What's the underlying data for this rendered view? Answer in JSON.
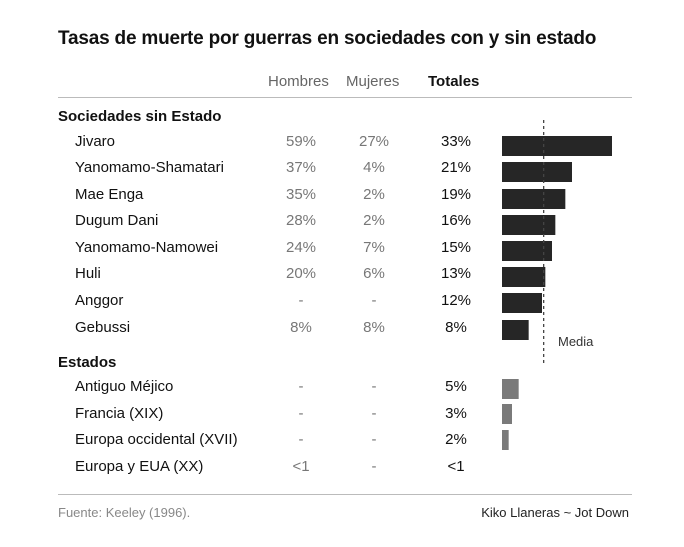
{
  "title": "Tasas de muerte por guerras en sociedades con y sin estado",
  "columns": {
    "men": "Hombres",
    "women": "Mujeres",
    "total": "Totales"
  },
  "sections": [
    {
      "name": "Sociedades sin Estado"
    },
    {
      "name": "Estados"
    }
  ],
  "rows": [
    {
      "label": "Jivaro",
      "men": "59%",
      "women": "27%",
      "total": "33%"
    },
    {
      "label": "Yanomamo-Shamatari",
      "men": "37%",
      "women": "4%",
      "total": "21%"
    },
    {
      "label": "Mae Enga",
      "men": "35%",
      "women": "2%",
      "total": "19%"
    },
    {
      "label": "Dugum Dani",
      "men": "28%",
      "women": "2%",
      "total": "16%"
    },
    {
      "label": "Yanomamo-Namowei",
      "men": "24%",
      "women": "7%",
      "total": "15%"
    },
    {
      "label": "Huli",
      "men": "20%",
      "women": "6%",
      "total": "13%"
    },
    {
      "label": "Anggor",
      "men": "-",
      "women": "-",
      "total": "12%"
    },
    {
      "label": "Gebussi",
      "men": "8%",
      "women": "8%",
      "total": "8%"
    },
    {
      "label": "Antiguo Méjico",
      "men": "-",
      "women": "-",
      "total": "5%"
    },
    {
      "label": "Francia (XIX)",
      "men": "-",
      "women": "-",
      "total": "3%"
    },
    {
      "label": "Europa occidental (XVII)",
      "men": "-",
      "women": "-",
      "total": "2%"
    },
    {
      "label": "Europa y EUA (XX)",
      "men": "<1",
      "women": "-",
      "total": "<1"
    }
  ],
  "footer": {
    "source": "Fuente: Keeley (1996).",
    "credit": "Kiko Llaneras ~ Jot Down"
  },
  "chart_data": {
    "type": "bar",
    "orientation": "horizontal",
    "title": "Tasas de muerte por guerras en sociedades con y sin estado",
    "categories": [
      "Jivaro",
      "Yanomamo-Shamatari",
      "Mae Enga",
      "Dugum Dani",
      "Yanomamo-Namowei",
      "Huli",
      "Anggor",
      "Gebussi",
      "Antiguo Méjico",
      "Francia (XIX)",
      "Europa occidental (XVII)",
      "Europa y EUA (XX)"
    ],
    "series": [
      {
        "name": "Totales",
        "values": [
          33,
          21,
          19,
          16,
          15,
          13,
          12,
          8,
          5,
          3,
          2,
          0.5
        ]
      }
    ],
    "groups": [
      "Sociedades sin Estado",
      "Sociedades sin Estado",
      "Sociedades sin Estado",
      "Sociedades sin Estado",
      "Sociedades sin Estado",
      "Sociedades sin Estado",
      "Sociedades sin Estado",
      "Sociedades sin Estado",
      "Estados",
      "Estados",
      "Estados",
      "Estados"
    ],
    "mean_label": "Media",
    "mean_value": 12.5,
    "colors": {
      "stateless": "#262626",
      "states": "#7a7a7a",
      "mean_line": "#444444"
    },
    "grid": false
  }
}
